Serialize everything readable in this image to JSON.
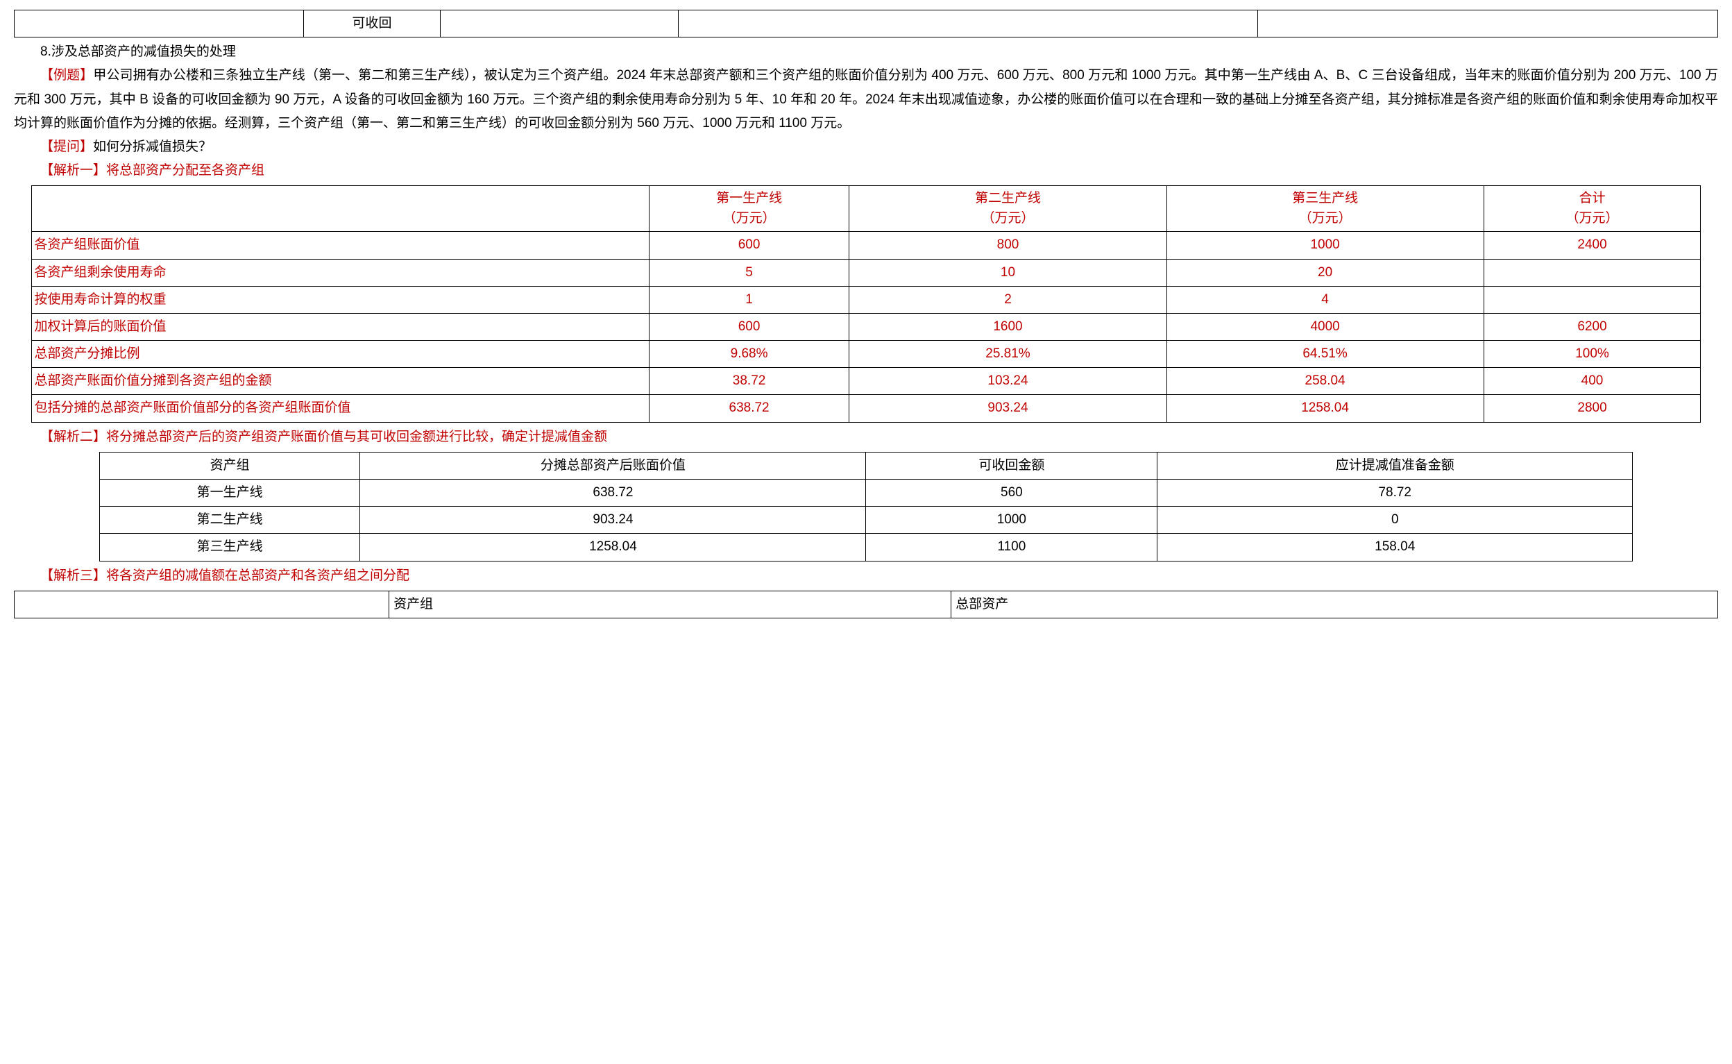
{
  "topTable": {
    "label": "可收回"
  },
  "section": {
    "s8_title": "8.涉及总部资产的减值损失的处理",
    "example_label": "【例题】",
    "example_body": "甲公司拥有办公楼和三条独立生产线（第一、第二和第三生产线），被认定为三个资产组。2024 年末总部资产额和三个资产组的账面价值分别为 400 万元、600 万元、800 万元和 1000 万元。其中第一生产线由 A、B、C 三台设备组成，当年末的账面价值分别为 200 万元、100 万元和 300 万元，其中 B 设备的可收回金额为 90 万元，A 设备的可收回金额为 160 万元。三个资产组的剩余使用寿命分别为 5 年、10 年和 20 年。2024 年末出现减值迹象，办公楼的账面价值可以在合理和一致的基础上分摊至各资产组，其分摊标准是各资产组的账面价值和剩余使用寿命加权平均计算的账面价值作为分摊的依据。经测算，三个资产组（第一、第二和第三生产线）的可收回金额分别为 560 万元、1000 万元和 1100 万元。",
    "question_label": "【提问】",
    "question_text": "如何分拆减值损失？",
    "analysis1_label": "【解析一】",
    "analysis1_text": "将总部资产分配至各资产组",
    "analysis2_label": "【解析二】",
    "analysis2_text": "将分摊总部资产后的资产组资产账面价值与其可收回金额进行比较，确定计提减值金额",
    "analysis3_label": "【解析三】",
    "analysis3_text": "将各资产组的减值额在总部资产和各资产组之间分配"
  },
  "table1": {
    "headers": {
      "blank": "",
      "c1": "第一生产线\n（万元）",
      "c2": "第二生产线\n（万元）",
      "c3": "第三生产线\n（万元）",
      "c4": "合计\n（万元）"
    },
    "rows": [
      {
        "label": "各资产组账面价值",
        "v1": "600",
        "v2": "800",
        "v3": "1000",
        "v4": "2400"
      },
      {
        "label": "各资产组剩余使用寿命",
        "v1": "5",
        "v2": "10",
        "v3": "20",
        "v4": ""
      },
      {
        "label": "按使用寿命计算的权重",
        "v1": "1",
        "v2": "2",
        "v3": "4",
        "v4": ""
      },
      {
        "label": "加权计算后的账面价值",
        "v1": "600",
        "v2": "1600",
        "v3": "4000",
        "v4": "6200"
      },
      {
        "label": "总部资产分摊比例",
        "v1": "9.68%",
        "v2": "25.81%",
        "v3": "64.51%",
        "v4": "100%"
      },
      {
        "label": "总部资产账面价值分摊到各资产组的金额",
        "v1": "38.72",
        "v2": "103.24",
        "v3": "258.04",
        "v4": "400"
      },
      {
        "label": "包括分摊的总部资产账面价值部分的各资产组账面价值",
        "v1": "638.72",
        "v2": "903.24",
        "v3": "1258.04",
        "v4": "2800"
      }
    ],
    "colwidths": {
      "label": "37%",
      "c1": "12%",
      "c2": "19%",
      "c3": "19%",
      "c4": "13%"
    },
    "text_color": "#c00000"
  },
  "table2": {
    "headers": {
      "c1": "资产组",
      "c2": "分摊总部资产后账面价值",
      "c3": "可收回金额",
      "c4": "应计提减值准备金额"
    },
    "rows": [
      {
        "c1": "第一生产线",
        "c2": "638.72",
        "c3": "560",
        "c4": "78.72"
      },
      {
        "c1": "第二生产线",
        "c2": "903.24",
        "c3": "1000",
        "c4": "0"
      },
      {
        "c1": "第三生产线",
        "c2": "1258.04",
        "c3": "1100",
        "c4": "158.04"
      }
    ],
    "colwidths": {
      "c1": "17%",
      "c2": "33%",
      "c3": "19%",
      "c4": "31%"
    }
  },
  "table3": {
    "headers": {
      "c1": "",
      "c2": "资产组",
      "c3": "总部资产"
    }
  }
}
